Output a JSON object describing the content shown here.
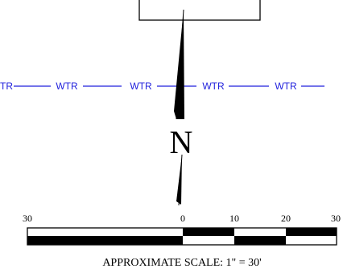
{
  "north_arrow": {
    "letter": "N"
  },
  "water_line": {
    "label": "WTR",
    "partial_label": "TR",
    "color": "#2222dd"
  },
  "scale_bar": {
    "ticks": [
      "30",
      "0",
      "10",
      "20",
      "30"
    ],
    "caption": "APPROXIMATE SCALE: 1\" = 30'"
  },
  "colors": {
    "ink": "#000000",
    "background": "#ffffff"
  }
}
